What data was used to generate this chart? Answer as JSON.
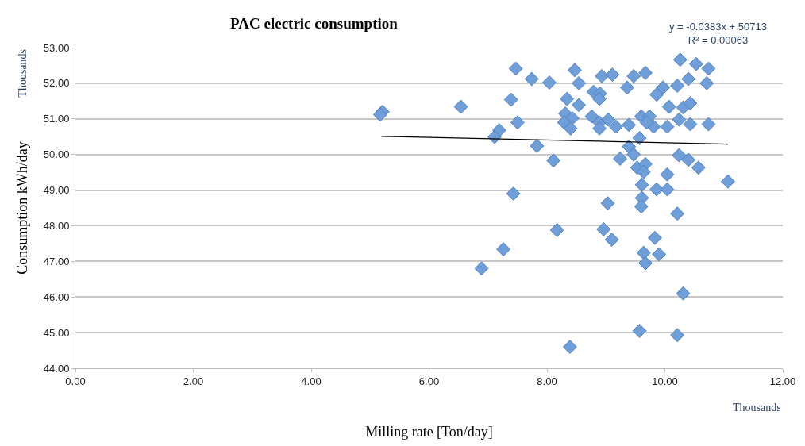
{
  "chart_data": {
    "type": "scatter",
    "title": "PAC electric consumption",
    "xlabel": "Milling rate [Ton/day]",
    "ylabel": "Consumption kWh/day",
    "annotations": [
      "y = -0.0383x + 50713\nR² = 0.00063",
      "Thousands",
      "Thousands"
    ],
    "series": [
      {
        "color": "#6f9fd8",
        "marker": "diamond",
        "x": [
          5.21,
          5.17,
          6.54,
          7.47,
          7.74,
          8.04,
          7.39,
          7.5,
          7.19,
          7.11,
          7.83,
          8.11,
          7.43,
          8.17,
          7.26,
          6.89,
          8.39,
          8.47,
          8.54,
          8.34,
          8.54,
          8.31,
          8.43,
          8.29,
          8.4,
          8.93,
          9.11,
          8.79,
          8.9,
          8.89,
          8.76,
          8.89,
          8.89,
          9.04,
          9.17,
          9.36,
          9.47,
          9.67,
          9.39,
          9.6,
          9.74,
          9.81,
          9.69,
          9.86,
          9.97,
          10.04,
          10.07,
          10.21,
          10.24,
          10.31,
          10.43,
          10.4,
          10.43,
          10.26,
          10.53,
          10.74,
          10.71,
          10.74,
          9.57,
          9.39,
          9.24,
          9.47,
          9.53,
          9.67,
          9.64,
          10.04,
          9.61,
          9.86,
          10.04,
          9.61,
          9.6,
          9.03,
          10.24,
          10.4,
          10.57,
          11.07,
          10.21,
          8.96,
          9.1,
          9.83,
          9.64,
          9.9,
          9.67,
          10.31,
          9.57,
          10.21
        ],
        "values": [
          51.2,
          51.12,
          51.34,
          52.41,
          52.12,
          52.02,
          51.54,
          50.9,
          50.68,
          50.49,
          50.24,
          49.83,
          48.9,
          47.88,
          47.34,
          46.8,
          44.6,
          52.37,
          52.0,
          51.56,
          51.39,
          51.15,
          51.02,
          50.9,
          50.73,
          52.2,
          52.24,
          51.76,
          51.71,
          51.56,
          51.07,
          50.9,
          50.73,
          50.98,
          50.78,
          51.88,
          52.2,
          52.29,
          50.83,
          51.07,
          51.07,
          50.78,
          50.9,
          51.68,
          51.88,
          50.78,
          51.34,
          51.93,
          50.98,
          51.32,
          51.44,
          52.12,
          50.85,
          52.66,
          52.54,
          52.41,
          52.0,
          50.85,
          50.46,
          50.22,
          49.88,
          50.0,
          49.63,
          49.73,
          49.51,
          49.44,
          49.15,
          49.02,
          49.02,
          48.78,
          48.54,
          48.63,
          49.98,
          49.85,
          49.63,
          49.24,
          48.34,
          47.9,
          47.61,
          47.66,
          47.24,
          47.2,
          46.95,
          46.1,
          45.05,
          44.93
        ]
      },
      {
        "type": "line",
        "color": "#000000",
        "marker": "none",
        "line_style": "solid",
        "x": [
          5.19,
          11.07
        ],
        "values": [
          50.51,
          50.29
        ]
      }
    ],
    "xlim": [
      0,
      12
    ],
    "xticks": [
      {
        "value": 0,
        "label": "0.00"
      },
      {
        "value": 2,
        "label": "2.00"
      },
      {
        "value": 4,
        "label": "4.00"
      },
      {
        "value": 6,
        "label": "6.00"
      },
      {
        "value": 8,
        "label": "8.00"
      },
      {
        "value": 10,
        "label": "10.00"
      },
      {
        "value": 12,
        "label": "12.00"
      }
    ],
    "ylim": [
      44,
      53
    ],
    "yticks": [
      {
        "value": 44,
        "label": "44.00"
      },
      {
        "value": 45,
        "label": "45.00"
      },
      {
        "value": 46,
        "label": "46.00"
      },
      {
        "value": 47,
        "label": "47.00"
      },
      {
        "value": 48,
        "label": "48.00"
      },
      {
        "value": 49,
        "label": "49.00"
      },
      {
        "value": 50,
        "label": "50.00"
      },
      {
        "value": 51,
        "label": "51.00"
      },
      {
        "value": 52,
        "label": "52.00"
      },
      {
        "value": 53,
        "label": "53.00"
      }
    ],
    "grid": "y"
  }
}
